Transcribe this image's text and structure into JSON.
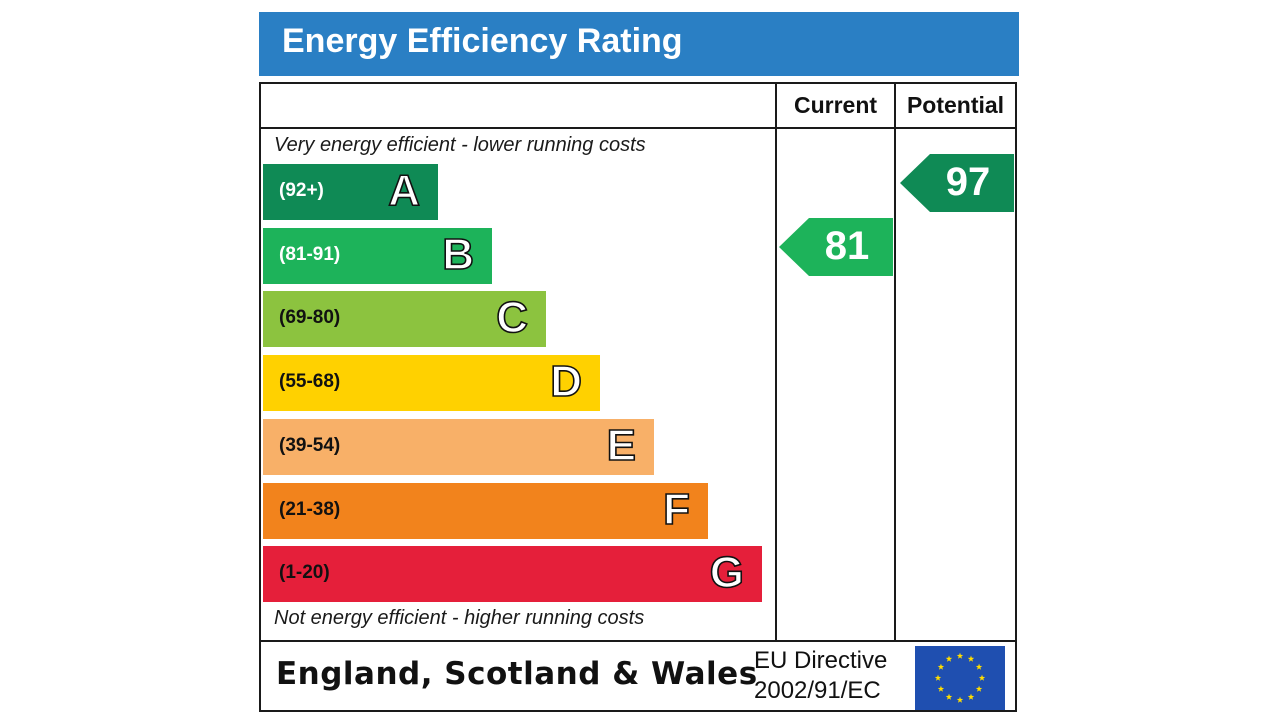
{
  "title": "Energy Efficiency Rating",
  "columns": {
    "current": "Current",
    "potential": "Potential"
  },
  "top_caption": "Very energy efficient - lower running costs",
  "bottom_caption": "Not energy efficient - higher running costs",
  "chart_data": {
    "type": "bar",
    "categories": [
      "A",
      "B",
      "C",
      "D",
      "E",
      "F",
      "G"
    ],
    "ranges": [
      "(92+)",
      "(81-91)",
      "(69-80)",
      "(55-68)",
      "(39-54)",
      "(21-38)",
      "(1-20)"
    ],
    "colors": [
      "#0f8a55",
      "#1db35a",
      "#8cc33f",
      "#ffd100",
      "#f8b068",
      "#f2831c",
      "#e51f3a"
    ],
    "range_text_colors": [
      "#ffffff",
      "#ffffff",
      "#111111",
      "#111111",
      "#111111",
      "#111111",
      "#111111"
    ],
    "current": {
      "value": 81,
      "band": "B",
      "color": "#1db35a"
    },
    "potential": {
      "value": 97,
      "band": "A",
      "color": "#0f8a55"
    }
  },
  "footer": {
    "region": "England, Scotland & Wales",
    "directive_line1": "EU Directive",
    "directive_line2": "2002/91/EC"
  }
}
